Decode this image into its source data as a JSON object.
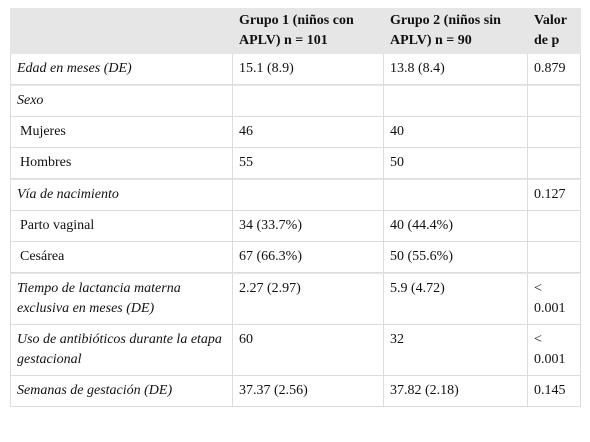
{
  "table": {
    "header": [
      "Grupo 1 (niños con APLV) n = 101",
      "Grupo 2 (niños sin APLV) n = 90",
      "Valor de p"
    ],
    "sections": [
      [
        {
          "name": "Edad en meses (DE)",
          "g1": "15.1 (8.9)",
          "g2": "13.8 (8.4)",
          "p": "0.879"
        }
      ],
      [
        {
          "name": "Sexo",
          "levels": [
            {
              "label": "Mujeres",
              "g1": "46",
              "g2": "40"
            },
            {
              "label": "Hombres",
              "g1": "55",
              "g2": "50"
            }
          ]
        }
      ],
      [
        {
          "name": "Vía de nacimiento",
          "p": "0.127",
          "levels": [
            {
              "label": "Parto vaginal",
              "g1": "34 (33.7%)",
              "g2": "40 (44.4%)"
            },
            {
              "label": "Cesárea",
              "g1": "67 (66.3%)",
              "g2": "50 (55.6%)"
            }
          ]
        }
      ],
      [
        {
          "name": "Tiempo de lactancia materna exclusiva en meses (DE)",
          "g1": "2.27 (2.97)",
          "g2": "5.9 (4.72)",
          "p": "< 0.001"
        },
        {
          "name": "Uso de antibióticos durante la etapa gestacional",
          "g1": "60",
          "g2": "32",
          "p": "< 0.001"
        },
        {
          "name": "Semanas de gestación (DE)",
          "g1": "37.37 (2.56)",
          "g2": "37.82 (2.18)",
          "p": "0.145"
        }
      ]
    ]
  }
}
